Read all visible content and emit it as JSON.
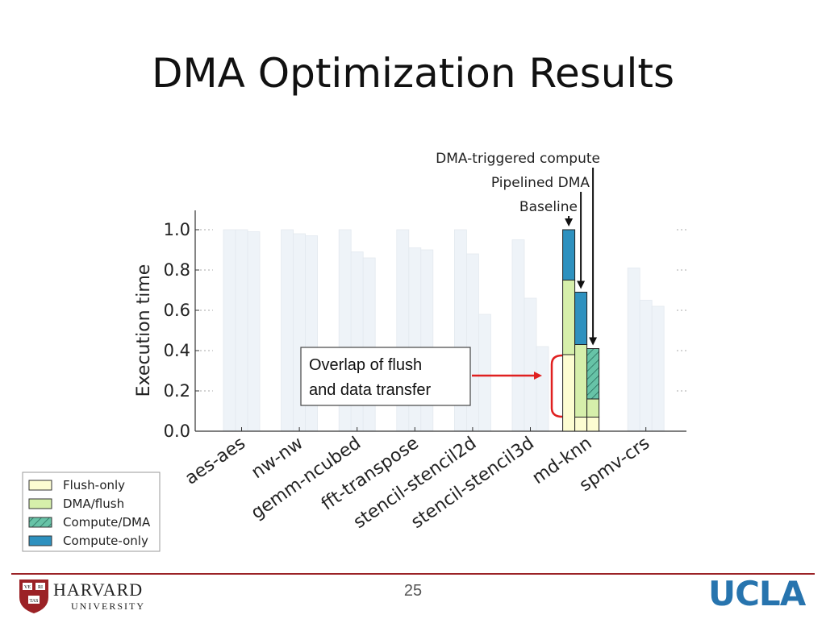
{
  "slide": {
    "title": "DMA Optimization Results",
    "page_number": "25",
    "logos": {
      "left": "HARVARD",
      "left_sub": "UNIVERSITY",
      "shield_text": [
        "VE",
        "RI",
        "TAS"
      ],
      "right": "UCLA"
    }
  },
  "colors": {
    "flush_only": "#fdfdd2",
    "dma_flush": "#d6efab",
    "compute_dma": "#67c3a7",
    "compute_only": "#2e91bf",
    "faded_bar": "#eef3f8",
    "annotation_red": "#e02020",
    "harvard_red": "#9b2226",
    "ucla_blue": "#2774ae"
  },
  "chart_data": {
    "type": "bar",
    "stacked": true,
    "ylabel": "Execution time",
    "ylim": [
      0,
      1.1
    ],
    "yticks": [
      "0.0",
      "0.2",
      "0.4",
      "0.6",
      "0.8",
      "1.0"
    ],
    "categories": [
      "aes-aes",
      "nw-nw",
      "gemm-ncubed",
      "fft-transpose",
      "stencil-stencil2d",
      "stencil-stencil3d",
      "md-knn",
      "spmv-crs"
    ],
    "variants": [
      "Baseline",
      "Pipelined DMA",
      "DMA-triggered compute"
    ],
    "legend": {
      "position": "bottom-left",
      "entries": [
        "Flush-only",
        "DMA/flush",
        "Compute/DMA",
        "Compute-only"
      ]
    },
    "highlighted_category": "md-knn",
    "highlighted_bars": [
      {
        "variant": "Baseline",
        "flush_only": 0.38,
        "dma_flush": 0.37,
        "compute_dma": 0.0,
        "compute_only": 0.25
      },
      {
        "variant": "Pipelined DMA",
        "flush_only": 0.07,
        "dma_flush": 0.36,
        "compute_dma": 0.0,
        "compute_only": 0.26
      },
      {
        "variant": "DMA-triggered compute",
        "flush_only": 0.07,
        "dma_flush": 0.09,
        "compute_dma": 0.25,
        "compute_only": 0.0
      }
    ],
    "faded_totals": [
      [
        1.0,
        1.0,
        0.99
      ],
      [
        1.0,
        0.98,
        0.97
      ],
      [
        1.0,
        0.89,
        0.86
      ],
      [
        1.0,
        0.91,
        0.9
      ],
      [
        1.0,
        0.88,
        0.58
      ],
      [
        0.95,
        0.66,
        0.42
      ],
      [
        null,
        null,
        null
      ],
      [
        0.81,
        0.65,
        0.62
      ]
    ],
    "annotations": {
      "variant_arrows": [
        "DMA-triggered compute",
        "Pipelined DMA",
        "Baseline"
      ],
      "callout": "Overlap of flush and data transfer",
      "callout_lines": [
        "Overlap of flush",
        "and data transfer"
      ]
    }
  }
}
